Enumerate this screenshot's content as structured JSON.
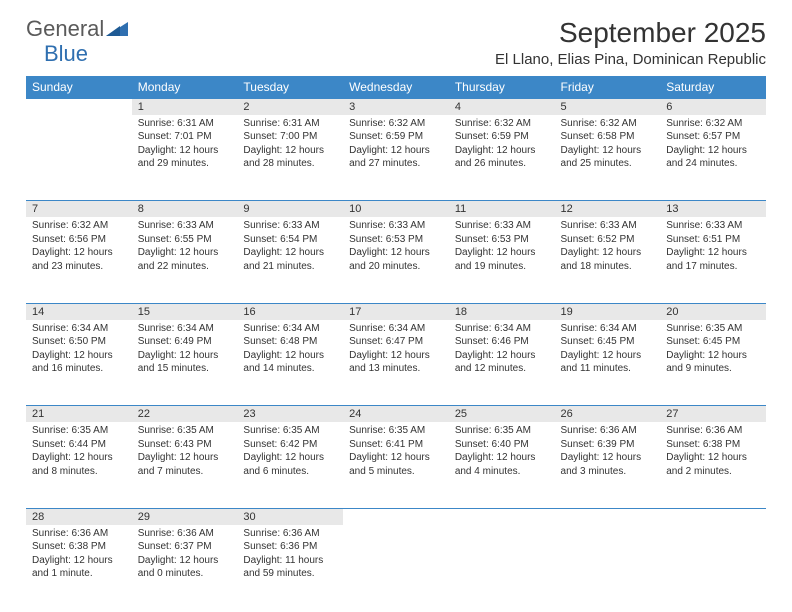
{
  "logo": {
    "text_gray": "General",
    "text_blue": "Blue",
    "tri_color": "#2f6fb0"
  },
  "header": {
    "month_title": "September 2025",
    "location": "El Llano, Elias Pina, Dominican Republic"
  },
  "colors": {
    "header_bg": "#3c87c7",
    "daynum_bg": "#e8e8e8",
    "rule": "#3c87c7",
    "text": "#333333"
  },
  "calendar": {
    "day_headers": [
      "Sunday",
      "Monday",
      "Tuesday",
      "Wednesday",
      "Thursday",
      "Friday",
      "Saturday"
    ],
    "weeks": [
      [
        null,
        {
          "n": "1",
          "sr": "6:31 AM",
          "ss": "7:01 PM",
          "dl": "12 hours and 29 minutes."
        },
        {
          "n": "2",
          "sr": "6:31 AM",
          "ss": "7:00 PM",
          "dl": "12 hours and 28 minutes."
        },
        {
          "n": "3",
          "sr": "6:32 AM",
          "ss": "6:59 PM",
          "dl": "12 hours and 27 minutes."
        },
        {
          "n": "4",
          "sr": "6:32 AM",
          "ss": "6:59 PM",
          "dl": "12 hours and 26 minutes."
        },
        {
          "n": "5",
          "sr": "6:32 AM",
          "ss": "6:58 PM",
          "dl": "12 hours and 25 minutes."
        },
        {
          "n": "6",
          "sr": "6:32 AM",
          "ss": "6:57 PM",
          "dl": "12 hours and 24 minutes."
        }
      ],
      [
        {
          "n": "7",
          "sr": "6:32 AM",
          "ss": "6:56 PM",
          "dl": "12 hours and 23 minutes."
        },
        {
          "n": "8",
          "sr": "6:33 AM",
          "ss": "6:55 PM",
          "dl": "12 hours and 22 minutes."
        },
        {
          "n": "9",
          "sr": "6:33 AM",
          "ss": "6:54 PM",
          "dl": "12 hours and 21 minutes."
        },
        {
          "n": "10",
          "sr": "6:33 AM",
          "ss": "6:53 PM",
          "dl": "12 hours and 20 minutes."
        },
        {
          "n": "11",
          "sr": "6:33 AM",
          "ss": "6:53 PM",
          "dl": "12 hours and 19 minutes."
        },
        {
          "n": "12",
          "sr": "6:33 AM",
          "ss": "6:52 PM",
          "dl": "12 hours and 18 minutes."
        },
        {
          "n": "13",
          "sr": "6:33 AM",
          "ss": "6:51 PM",
          "dl": "12 hours and 17 minutes."
        }
      ],
      [
        {
          "n": "14",
          "sr": "6:34 AM",
          "ss": "6:50 PM",
          "dl": "12 hours and 16 minutes."
        },
        {
          "n": "15",
          "sr": "6:34 AM",
          "ss": "6:49 PM",
          "dl": "12 hours and 15 minutes."
        },
        {
          "n": "16",
          "sr": "6:34 AM",
          "ss": "6:48 PM",
          "dl": "12 hours and 14 minutes."
        },
        {
          "n": "17",
          "sr": "6:34 AM",
          "ss": "6:47 PM",
          "dl": "12 hours and 13 minutes."
        },
        {
          "n": "18",
          "sr": "6:34 AM",
          "ss": "6:46 PM",
          "dl": "12 hours and 12 minutes."
        },
        {
          "n": "19",
          "sr": "6:34 AM",
          "ss": "6:45 PM",
          "dl": "12 hours and 11 minutes."
        },
        {
          "n": "20",
          "sr": "6:35 AM",
          "ss": "6:45 PM",
          "dl": "12 hours and 9 minutes."
        }
      ],
      [
        {
          "n": "21",
          "sr": "6:35 AM",
          "ss": "6:44 PM",
          "dl": "12 hours and 8 minutes."
        },
        {
          "n": "22",
          "sr": "6:35 AM",
          "ss": "6:43 PM",
          "dl": "12 hours and 7 minutes."
        },
        {
          "n": "23",
          "sr": "6:35 AM",
          "ss": "6:42 PM",
          "dl": "12 hours and 6 minutes."
        },
        {
          "n": "24",
          "sr": "6:35 AM",
          "ss": "6:41 PM",
          "dl": "12 hours and 5 minutes."
        },
        {
          "n": "25",
          "sr": "6:35 AM",
          "ss": "6:40 PM",
          "dl": "12 hours and 4 minutes."
        },
        {
          "n": "26",
          "sr": "6:36 AM",
          "ss": "6:39 PM",
          "dl": "12 hours and 3 minutes."
        },
        {
          "n": "27",
          "sr": "6:36 AM",
          "ss": "6:38 PM",
          "dl": "12 hours and 2 minutes."
        }
      ],
      [
        {
          "n": "28",
          "sr": "6:36 AM",
          "ss": "6:38 PM",
          "dl": "12 hours and 1 minute."
        },
        {
          "n": "29",
          "sr": "6:36 AM",
          "ss": "6:37 PM",
          "dl": "12 hours and 0 minutes."
        },
        {
          "n": "30",
          "sr": "6:36 AM",
          "ss": "6:36 PM",
          "dl": "11 hours and 59 minutes."
        },
        null,
        null,
        null,
        null
      ]
    ],
    "labels": {
      "sunrise": "Sunrise:",
      "sunset": "Sunset:",
      "daylight": "Daylight:"
    }
  }
}
